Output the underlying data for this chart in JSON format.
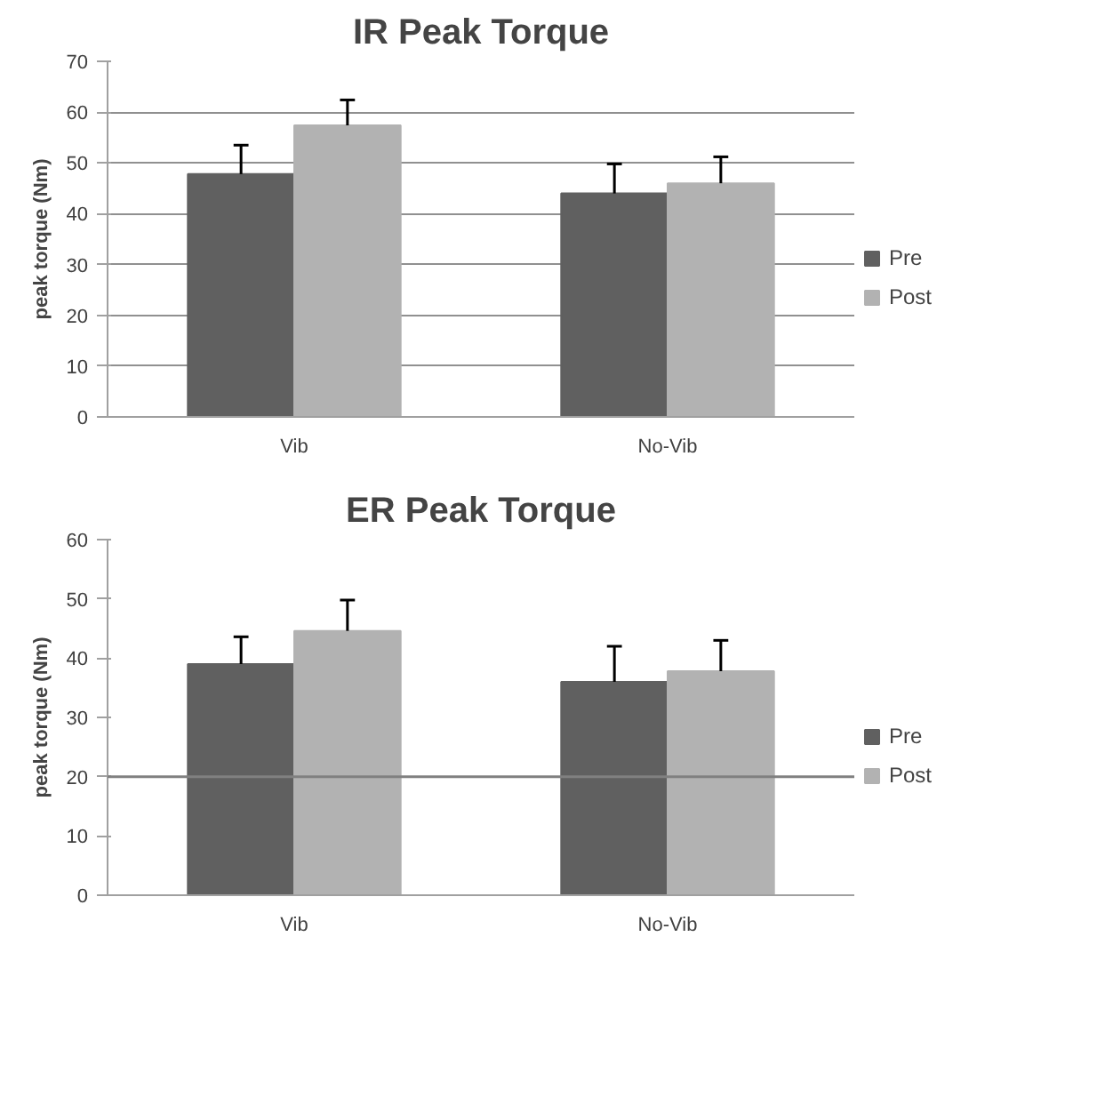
{
  "chart_data": [
    {
      "type": "bar",
      "title": "IR Peak Torque",
      "ylabel": "peak torque (Nm)",
      "categories": [
        "Vib",
        "No-Vib"
      ],
      "series": [
        {
          "name": "Pre",
          "color": "#606060",
          "values": [
            47.8,
            44
          ],
          "errors": [
            [
              47.8,
              53.5
            ],
            [
              44,
              49.8
            ]
          ]
        },
        {
          "name": "Post",
          "color": "#b2b2b2",
          "values": [
            57.4,
            46
          ],
          "errors": [
            [
              57.4,
              62.4
            ],
            [
              46,
              51.2
            ]
          ]
        }
      ],
      "ylim": [
        0,
        70
      ],
      "yticks": [
        0,
        10,
        20,
        30,
        40,
        50,
        60,
        70
      ],
      "grid": "y",
      "legend": "right"
    },
    {
      "type": "bar",
      "title": "ER Peak Torque",
      "ylabel": "peak torque (Nm)",
      "categories": [
        "Vib",
        "No-Vib"
      ],
      "series": [
        {
          "name": "Pre",
          "color": "#606060",
          "values": [
            39,
            36
          ],
          "errors": [
            [
              39,
              43.6
            ],
            [
              36,
              42
            ]
          ]
        },
        {
          "name": "Post",
          "color": "#b2b2b2",
          "values": [
            44.6,
            37.8
          ],
          "errors": [
            [
              44.6,
              49.8
            ],
            [
              37.8,
              43
            ]
          ]
        }
      ],
      "ylim": [
        0,
        60
      ],
      "yticks": [
        0,
        10,
        20,
        30,
        40,
        50,
        60
      ],
      "grid": false,
      "legend": "right",
      "ref_lines": [
        {
          "axis": "y",
          "value": 20,
          "label": null,
          "color": "#808080"
        }
      ]
    }
  ]
}
